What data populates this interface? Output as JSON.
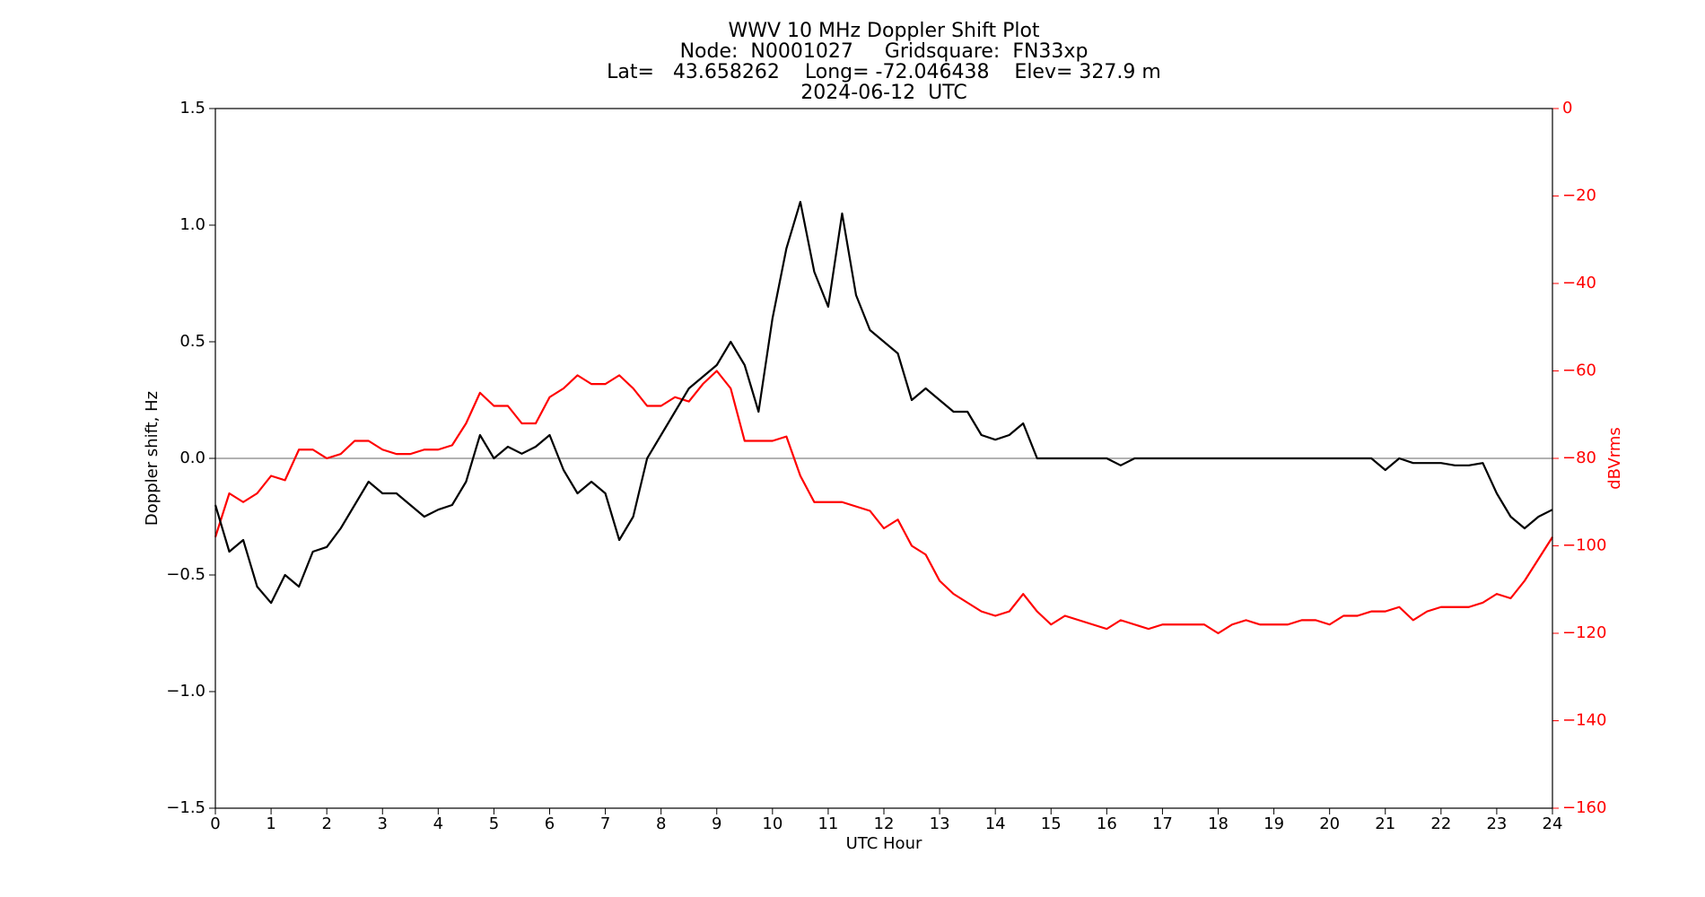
{
  "chart_data": {
    "type": "line",
    "title": [
      "WWV 10 MHz Doppler Shift Plot",
      "Node:  N0001027     Gridsquare:  FN33xp",
      "Lat=   43.658262    Long= -72.046438    Elev= 327.9 m",
      "2024-06-12  UTC"
    ],
    "xlabel": "UTC Hour",
    "ylabel": "Doppler shift, Hz",
    "y2label": "dBVrms",
    "x": [
      0,
      0.25,
      0.5,
      0.75,
      1,
      1.25,
      1.5,
      1.75,
      2,
      2.25,
      2.5,
      2.75,
      3,
      3.25,
      3.5,
      3.75,
      4,
      4.25,
      4.5,
      4.75,
      5,
      5.25,
      5.5,
      5.75,
      6,
      6.25,
      6.5,
      6.75,
      7,
      7.25,
      7.5,
      7.75,
      8,
      8.25,
      8.5,
      8.75,
      9,
      9.25,
      9.5,
      9.75,
      10,
      10.25,
      10.5,
      10.75,
      11,
      11.25,
      11.5,
      11.75,
      12,
      12.25,
      12.5,
      12.75,
      13,
      13.25,
      13.5,
      13.75,
      14,
      14.25,
      14.5,
      14.75,
      15,
      15.25,
      15.5,
      15.75,
      16,
      16.25,
      16.5,
      16.75,
      17,
      17.25,
      17.5,
      17.75,
      18,
      18.25,
      18.5,
      18.75,
      19,
      19.25,
      19.5,
      19.75,
      20,
      20.25,
      20.5,
      20.75,
      21,
      21.25,
      21.5,
      21.75,
      22,
      22.25,
      22.5,
      22.75,
      23,
      23.25,
      23.5,
      23.75,
      24
    ],
    "series": [
      {
        "name": "Doppler shift",
        "color": "#000000",
        "axis": "y",
        "values": [
          -0.2,
          -0.4,
          -0.35,
          -0.55,
          -0.62,
          -0.5,
          -0.55,
          -0.4,
          -0.38,
          -0.3,
          -0.2,
          -0.1,
          -0.15,
          -0.15,
          -0.2,
          -0.25,
          -0.22,
          -0.2,
          -0.1,
          0.1,
          0,
          0.05,
          0.02,
          0.05,
          0.1,
          -0.05,
          -0.15,
          -0.1,
          -0.15,
          -0.35,
          -0.25,
          0,
          0.1,
          0.2,
          0.3,
          0.35,
          0.4,
          0.5,
          0.4,
          0.2,
          0.6,
          0.9,
          1.1,
          0.8,
          0.65,
          1.05,
          0.7,
          0.55,
          0.5,
          0.45,
          0.25,
          0.3,
          0.25,
          0.2,
          0.2,
          0.1,
          0.08,
          0.1,
          0.15,
          0,
          0,
          0,
          0,
          0,
          0,
          -0.03,
          0,
          0,
          0,
          0,
          0,
          0,
          0,
          0,
          0,
          0,
          0,
          0,
          0,
          0,
          0,
          0,
          0,
          0,
          -0.05,
          0,
          -0.02,
          -0.02,
          -0.02,
          -0.03,
          -0.03,
          -0.02,
          -0.15,
          -0.25,
          -0.3,
          -0.25,
          -0.22
        ]
      },
      {
        "name": "dBVrms",
        "color": "#ff0000",
        "axis": "y2",
        "values": [
          -98,
          -88,
          -90,
          -88,
          -84,
          -85,
          -78,
          -78,
          -80,
          -79,
          -76,
          -76,
          -78,
          -79,
          -79,
          -78,
          -78,
          -77,
          -72,
          -65,
          -68,
          -68,
          -72,
          -72,
          -66,
          -64,
          -61,
          -63,
          -63,
          -61,
          -64,
          -68,
          -68,
          -66,
          -67,
          -63,
          -60,
          -64,
          -76,
          -76,
          -76,
          -75,
          -84,
          -90,
          -90,
          -90,
          -91,
          -92,
          -96,
          -94,
          -100,
          -102,
          -108,
          -111,
          -113,
          -115,
          -116,
          -115,
          -111,
          -115,
          -118,
          -116,
          -117,
          -118,
          -119,
          -117,
          -118,
          -119,
          -118,
          -118,
          -118,
          -118,
          -120,
          -118,
          -117,
          -118,
          -118,
          -118,
          -117,
          -117,
          -118,
          -116,
          -116,
          -115,
          -115,
          -114,
          -117,
          -115,
          -114,
          -114,
          -114,
          -113,
          -111,
          -112,
          -108,
          -103,
          -98
        ]
      }
    ],
    "xlim": [
      0,
      24
    ],
    "xticks": [
      0,
      1,
      2,
      3,
      4,
      5,
      6,
      7,
      8,
      9,
      10,
      11,
      12,
      13,
      14,
      15,
      16,
      17,
      18,
      19,
      20,
      21,
      22,
      23,
      24
    ],
    "ylim": [
      -1.5,
      1.5
    ],
    "yticks": [
      {
        "value": -1.5,
        "label": "−1.5"
      },
      {
        "value": -1,
        "label": "−1.0"
      },
      {
        "value": -0.5,
        "label": "−0.5"
      },
      {
        "value": 0,
        "label": "0.0"
      },
      {
        "value": 0.5,
        "label": "0.5"
      },
      {
        "value": 1,
        "label": "1.0"
      },
      {
        "value": 1.5,
        "label": "1.5"
      }
    ],
    "y2lim": [
      -160,
      0
    ],
    "y2ticks": [
      {
        "value": -160,
        "label": "−160"
      },
      {
        "value": -140,
        "label": "−140"
      },
      {
        "value": -120,
        "label": "−120"
      },
      {
        "value": -100,
        "label": "−100"
      },
      {
        "value": -80,
        "label": "−80"
      },
      {
        "value": -60,
        "label": "−60"
      },
      {
        "value": -40,
        "label": "−40"
      },
      {
        "value": -20,
        "label": "−20"
      },
      0
    ],
    "y2color": "#ff0000"
  }
}
